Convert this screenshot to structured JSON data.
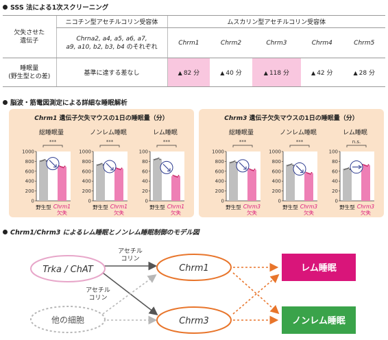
{
  "sections": {
    "s1": "SSS 法による1次スクリーニング",
    "s2": "脳波・筋電図測定による詳細な睡眠解析",
    "s3": "Chrm1/Chrm3 によるレム睡眠とノンレム睡眠制御のモデル図"
  },
  "table": {
    "row_head_gene": [
      "欠失させた",
      "遺伝子"
    ],
    "row_head_sleep": [
      "睡眠量",
      "(野生型との差)"
    ],
    "nicotinic_title": "ニコチン型アセチルコリン受容体",
    "muscarinic_title": "ムスカリン型アセチルコリン受容体",
    "nicotinic_genes": [
      "Chrna2, a4, a5, a6, a7,",
      "a9, a10, b2, b3, b4"
    ],
    "nicotinic_suffix": " のそれぞれ",
    "nicotinic_result": "基準に達する差なし",
    "muscarinic": [
      {
        "gene": "Chrm1",
        "diff": "82 分",
        "highlight": true
      },
      {
        "gene": "Chrm2",
        "diff": "40 分",
        "highlight": false
      },
      {
        "gene": "Chrm3",
        "diff": "118 分",
        "highlight": true
      },
      {
        "gene": "Chrm4",
        "diff": "42 分",
        "highlight": false
      },
      {
        "gene": "Chrm5",
        "diff": "28 分",
        "highlight": false
      }
    ],
    "triangle": "▲",
    "colors": {
      "highlight": "#f9c7df"
    }
  },
  "chart_data": [
    {
      "type": "bar",
      "title_gene": "Chrm1",
      "title_rest": " 遺伝子欠失マウスの1日の睡眠量（分）",
      "ylim": [
        0,
        1000
      ],
      "yticks": [
        "0",
        "200",
        "400",
        "600",
        "800",
        "1000"
      ],
      "categories": [
        "野生型",
        "Chrm1",
        "欠失"
      ],
      "subplots": [
        {
          "label": "総睡眠量",
          "wt": 820,
          "ko": 690,
          "sig": "***"
        },
        {
          "label": "ノンレム睡眠",
          "wt": 740,
          "ko": 650,
          "sig": "***"
        },
        {
          "label": "レム睡眠",
          "wt": 85,
          "ko": 50,
          "sig": "***",
          "ylim": [
            0,
            100
          ],
          "yticks": [
            "0",
            "20",
            "40",
            "60",
            "80",
            "100"
          ]
        }
      ]
    },
    {
      "type": "bar",
      "title_gene": "Chrm3",
      "title_rest": " 遺伝子欠失マウスの1日の睡眠量（分）",
      "ylim": [
        0,
        1000
      ],
      "yticks": [
        "0",
        "200",
        "400",
        "600",
        "800",
        "1000"
      ],
      "categories": [
        "野生型",
        "Chrm3",
        "欠失"
      ],
      "subplots": [
        {
          "label": "総睡眠量",
          "wt": 790,
          "ko": 630,
          "sig": "***"
        },
        {
          "label": "ノンレム睡眠",
          "wt": 730,
          "ko": 560,
          "sig": "***"
        },
        {
          "label": "レム睡眠",
          "wt": 65,
          "ko": 72,
          "sig": "n.s.",
          "ylim": [
            0,
            100
          ],
          "yticks": [
            "0",
            "20",
            "40",
            "60",
            "80",
            "100"
          ]
        }
      ]
    }
  ],
  "model": {
    "trka": "Trka / ChAT",
    "other": "他の細胞",
    "chrm1": "Chrm1",
    "chrm3": "Chrm3",
    "rem": "レム睡眠",
    "nrem": "ノンレム睡眠",
    "ach_top": [
      "アセチル",
      "コリン"
    ],
    "ach_mid": [
      "アセチル",
      "コリン"
    ],
    "colors": {
      "pink": "#e07fb0",
      "orange": "#e8752b",
      "magenta": "#d9157a",
      "green": "#3aa34a",
      "gray": "#b7b7b7"
    }
  }
}
